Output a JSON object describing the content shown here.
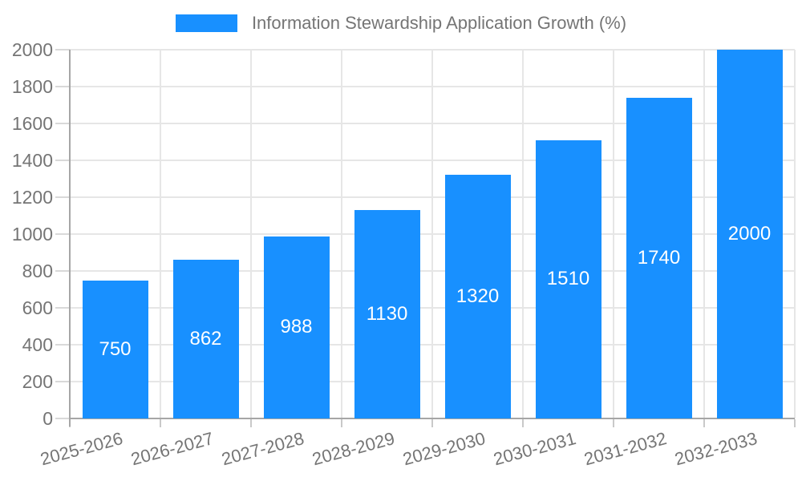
{
  "legend": {
    "label": "Information Stewardship Application Growth (%)"
  },
  "colors": {
    "bar": "#1890ff",
    "grid": "#e6e6e6",
    "axis": "#a6a6a6",
    "y_tick": "#d9d9d9",
    "x_tick": "#c9c9c9",
    "axis_text": "#757575",
    "legend_text": "#757575",
    "value_text": "#ffffff",
    "background": "#ffffff"
  },
  "chart_data": {
    "type": "bar",
    "title": "Information Stewardship Application Growth (%)",
    "categories": [
      "2025-2026",
      "2026-2027",
      "2027-2028",
      "2028-2029",
      "2029-2030",
      "2030-2031",
      "2031-2032",
      "2032-2033"
    ],
    "values": [
      750,
      862,
      988,
      1130,
      1320,
      1510,
      1740,
      2000
    ],
    "series": [
      {
        "name": "Information Stewardship Application Growth (%)",
        "values": [
          750,
          862,
          988,
          1130,
          1320,
          1510,
          1740,
          2000
        ]
      }
    ],
    "xlabel": "",
    "ylabel": "",
    "ylim": [
      0,
      2000
    ],
    "ytick_step": 200,
    "yticks": [
      0,
      200,
      400,
      600,
      800,
      1000,
      1200,
      1400,
      1600,
      1800,
      2000
    ],
    "grid": true,
    "legend_position": "top-center",
    "value_labels": "inside-center-white",
    "x_label_rotation_deg": -15
  }
}
